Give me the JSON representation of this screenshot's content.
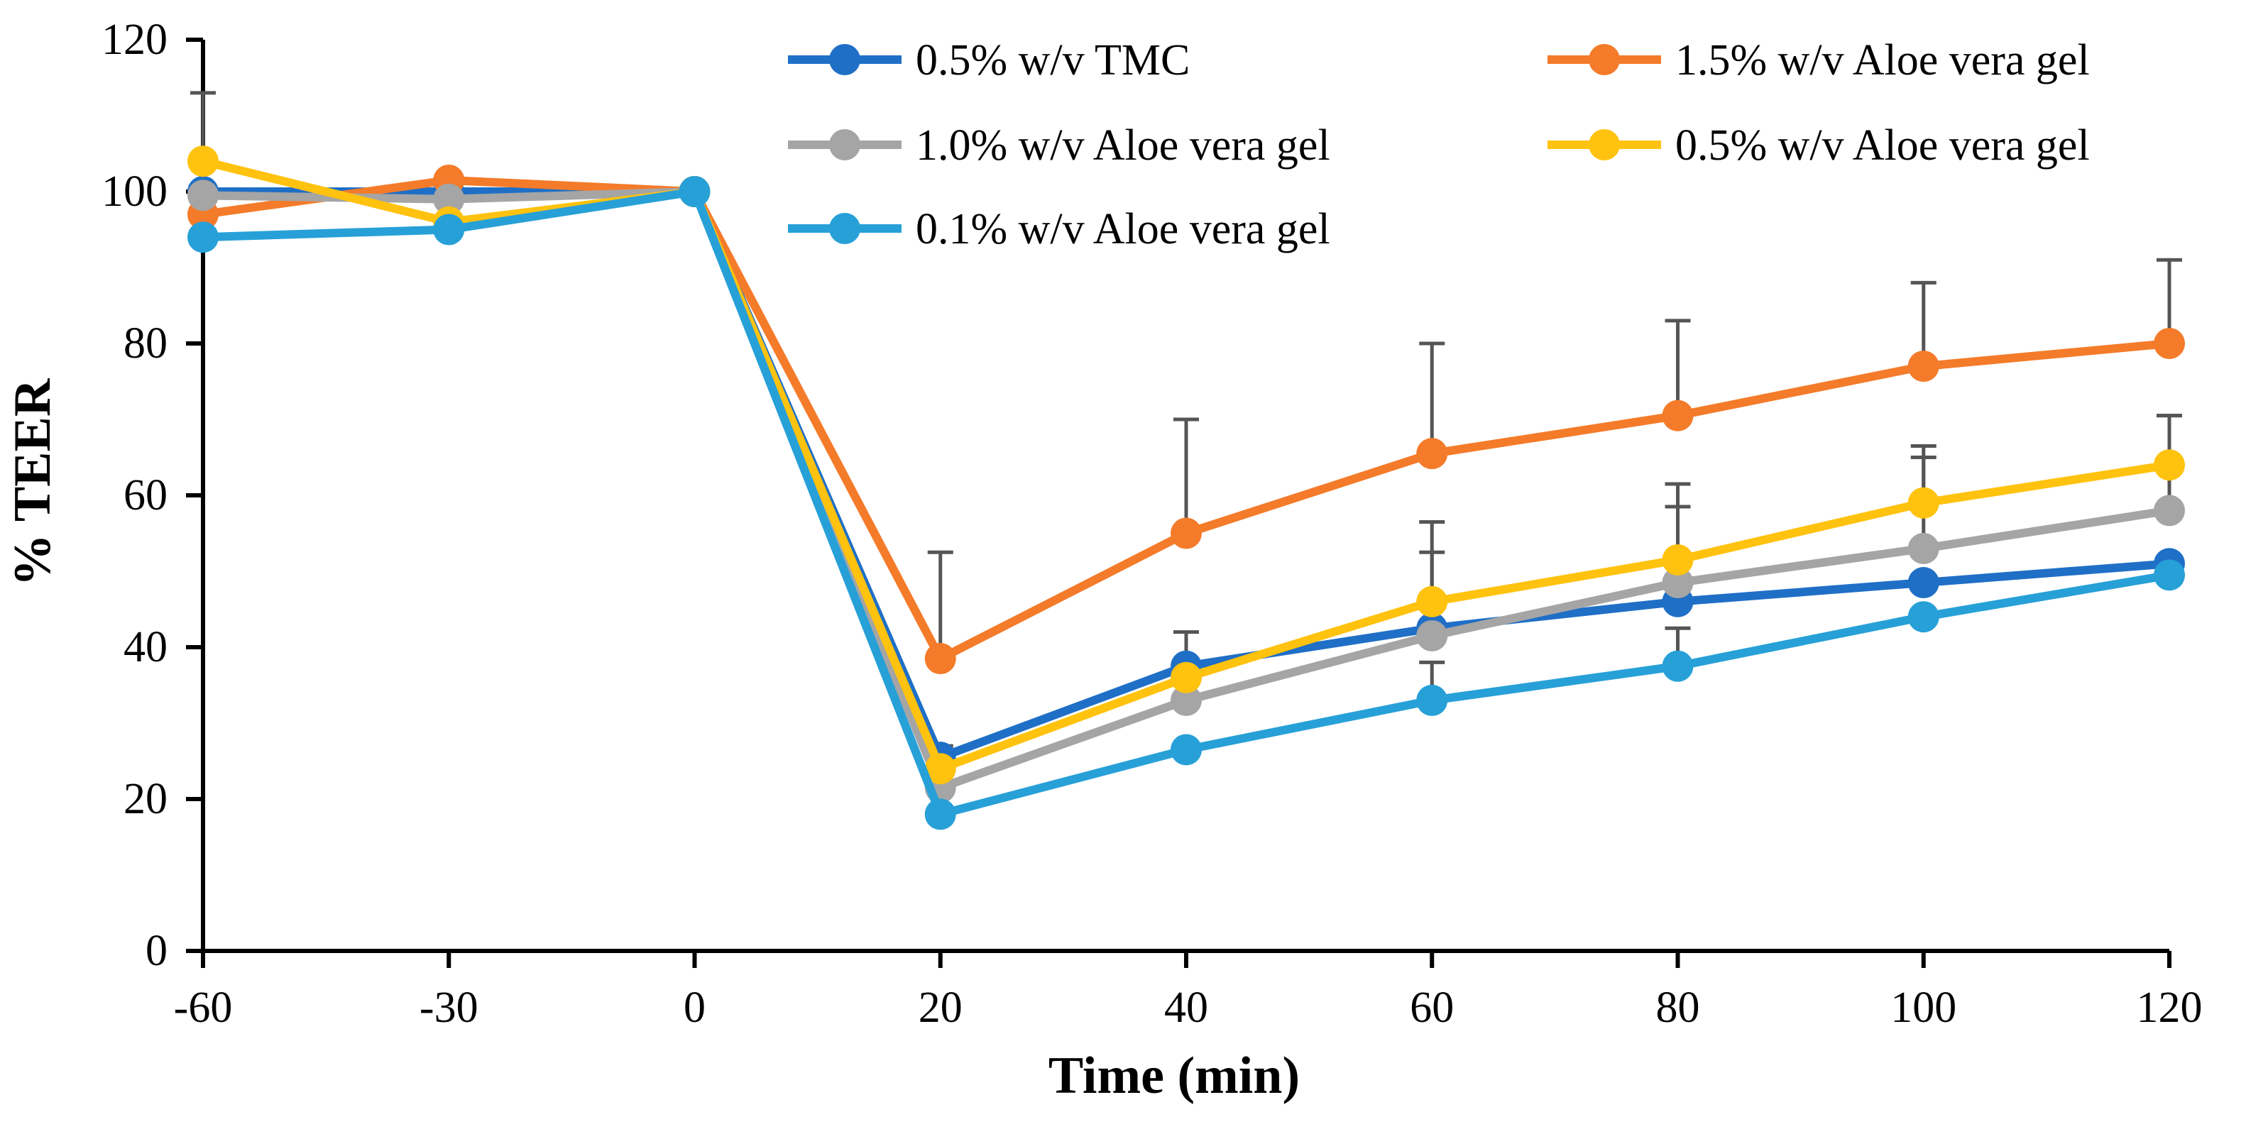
{
  "chart_data": {
    "type": "line",
    "title": "",
    "xlabel": "Time (min)",
    "ylabel": "% TEER",
    "categories": [
      "-60",
      "-30",
      "0",
      "20",
      "40",
      "60",
      "80",
      "100",
      "120"
    ],
    "ylim": [
      0,
      120
    ],
    "yticks": [
      "0",
      "20",
      "40",
      "60",
      "80",
      "100",
      "120"
    ],
    "grid": false,
    "legend_position": "top-right",
    "series": [
      {
        "name": "0.5% w/v TMC",
        "color": "#1f6fc6",
        "values": [
          100,
          100,
          100,
          25.5,
          37.5,
          42.5,
          46,
          48.5,
          51
        ],
        "error": [
          null,
          null,
          null,
          1.5,
          4.5,
          null,
          null,
          null,
          null
        ]
      },
      {
        "name": "1.5% w/v Aloe vera gel",
        "color": "#f47b2a",
        "values": [
          97,
          101.5,
          100,
          38.5,
          55,
          65.5,
          70.5,
          77,
          80
        ],
        "error": [
          null,
          null,
          null,
          14,
          15,
          14.5,
          12.5,
          11,
          11
        ]
      },
      {
        "name": "1.0% w/v Aloe vera gel",
        "color": "#a5a5a5",
        "values": [
          99.5,
          99,
          100,
          21.5,
          33,
          41.5,
          48.5,
          53,
          58
        ],
        "error": [
          null,
          null,
          null,
          null,
          null,
          11,
          10,
          12,
          12.5
        ]
      },
      {
        "name": "0.5% w/v Aloe vera gel",
        "color": "#ffc20e",
        "values": [
          104,
          96,
          100,
          24,
          36,
          46,
          51.5,
          59,
          64
        ],
        "error": [
          9,
          null,
          null,
          null,
          null,
          10.5,
          10,
          7.5,
          6.5
        ]
      },
      {
        "name": "0.1% w/v Aloe vera gel",
        "color": "#27a0d8",
        "values": [
          94,
          95,
          100,
          18,
          26.5,
          33,
          37.5,
          44,
          49.5
        ],
        "error": [
          null,
          null,
          null,
          null,
          null,
          5,
          5,
          null,
          null
        ]
      }
    ]
  }
}
